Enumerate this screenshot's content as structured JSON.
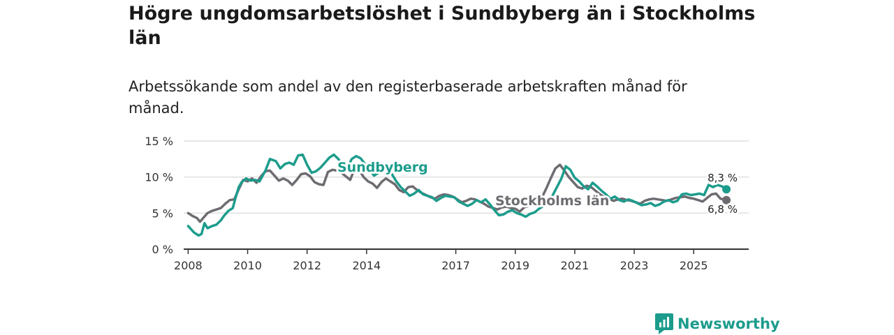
{
  "chart_data": {
    "type": "line",
    "title": "Högre ungdomsarbetslöshet i Sundbyberg än i Stockholms län",
    "subtitle": "Arbetssökande som andel av den registerbaserade arbetskraften månad för månad.",
    "xlabel": "",
    "ylabel": "",
    "xlim": [
      2007.85,
      2026.85
    ],
    "ylim": [
      0,
      15
    ],
    "x_ticks": [
      2008,
      2010,
      2012,
      2014,
      2017,
      2019,
      2021,
      2023,
      2025
    ],
    "x_tick_labels": [
      "2008",
      "2010",
      "2012",
      "2014",
      "2017",
      "2019",
      "2021",
      "2023",
      "2025"
    ],
    "y_ticks": [
      0,
      5,
      10,
      15
    ],
    "y_tick_labels": [
      "0 %",
      "5 %",
      "10 %",
      "15 %"
    ],
    "grid": true,
    "colors": {
      "Sundbyberg": "#1c9c8c",
      "Stockholms län": "#6e6b71",
      "grid": "#d6d6d6",
      "axis": "#333333"
    },
    "series": [
      {
        "name": "Sundbyberg",
        "label": "Sundbyberg",
        "end_label": "8,3 %",
        "x": [
          2008,
          2008.2,
          2008.35,
          2008.45,
          2008.55,
          2008.65,
          2008.8,
          2008.95,
          2009.1,
          2009.2,
          2009.35,
          2009.5,
          2009.6,
          2009.7,
          2009.8,
          2009.95,
          2010.1,
          2010.25,
          2010.4,
          2010.6,
          2010.75,
          2010.95,
          2011.1,
          2011.25,
          2011.4,
          2011.55,
          2011.7,
          2011.85,
          2012,
          2012.15,
          2012.3,
          2012.45,
          2012.6,
          2012.75,
          2012.9,
          2013.05,
          2013.2,
          2013.35,
          2013.5,
          2013.65,
          2013.8,
          2013.95,
          2014.1,
          2014.25,
          2014.4,
          2014.55,
          2014.7,
          2014.85,
          2015,
          2015.15,
          2015.3,
          2015.45,
          2015.6,
          2015.75,
          2015.9,
          2016.05,
          2016.2,
          2016.35,
          2016.5,
          2016.65,
          2016.8,
          2016.95,
          2017.1,
          2017.25,
          2017.4,
          2017.55,
          2017.7,
          2017.85,
          2018,
          2018.15,
          2018.3,
          2018.45,
          2018.6,
          2018.75,
          2018.9,
          2019.05,
          2019.2,
          2019.35,
          2019.5,
          2019.65,
          2019.8,
          2019.95,
          2020.1,
          2020.25,
          2020.4,
          2020.55,
          2020.7,
          2020.85,
          2021,
          2021.15,
          2021.3,
          2021.45,
          2021.6,
          2021.75,
          2021.9,
          2022.05,
          2022.2,
          2022.35,
          2022.5,
          2022.65,
          2022.8,
          2022.95,
          2023.1,
          2023.25,
          2023.4,
          2023.55,
          2023.7,
          2023.85,
          2024,
          2024.15,
          2024.3,
          2024.45,
          2024.6,
          2024.75,
          2024.9,
          2025.05,
          2025.2,
          2025.35,
          2025.5,
          2025.65,
          2025.8,
          2025.95,
          2026.1
        ],
        "values": [
          3.2,
          2.3,
          1.9,
          2.1,
          3.6,
          2.9,
          3.2,
          3.4,
          4.0,
          4.6,
          5.3,
          5.7,
          7.2,
          8.6,
          9.3,
          9.8,
          9.5,
          9.6,
          9.4,
          10.9,
          12.5,
          12.2,
          11.2,
          11.8,
          12.0,
          11.7,
          13.0,
          13.1,
          11.7,
          10.6,
          10.8,
          11.3,
          12.0,
          12.7,
          13.1,
          12.5,
          11.6,
          11.2,
          12.5,
          12.9,
          12.6,
          11.8,
          11.0,
          10.2,
          10.6,
          11.0,
          11.1,
          10.4,
          9.4,
          8.6,
          8.0,
          7.4,
          7.7,
          8.2,
          7.6,
          7.4,
          7.2,
          6.7,
          7.1,
          7.4,
          7.3,
          7.2,
          6.6,
          6.3,
          6.0,
          6.3,
          6.8,
          6.5,
          6.9,
          6.2,
          5.4,
          4.7,
          4.8,
          5.2,
          5.4,
          5.0,
          4.8,
          4.5,
          4.9,
          5.1,
          5.6,
          6.0,
          6.3,
          7.4,
          8.6,
          9.8,
          11.5,
          11.0,
          9.9,
          9.4,
          8.7,
          8.3,
          9.2,
          8.7,
          8.1,
          7.6,
          7.0,
          7.3,
          6.8,
          6.6,
          6.9,
          6.7,
          6.4,
          6.1,
          6.2,
          6.4,
          6.0,
          6.2,
          6.6,
          6.8,
          6.5,
          6.7,
          7.6,
          7.7,
          7.5,
          7.6,
          7.7,
          7.5,
          8.9,
          8.6,
          8.9,
          8.7,
          8.3
        ]
      },
      {
        "name": "Stockholms län",
        "label": "Stockholms län",
        "end_label": "6,8 %",
        "x": [
          2008,
          2008.15,
          2008.3,
          2008.4,
          2008.5,
          2008.65,
          2008.8,
          2008.95,
          2009.1,
          2009.25,
          2009.4,
          2009.55,
          2009.7,
          2009.85,
          2010,
          2010.15,
          2010.3,
          2010.45,
          2010.6,
          2010.75,
          2010.9,
          2011.05,
          2011.2,
          2011.35,
          2011.5,
          2011.65,
          2011.8,
          2011.95,
          2012.1,
          2012.25,
          2012.4,
          2012.55,
          2012.7,
          2012.85,
          2013,
          2013.15,
          2013.3,
          2013.45,
          2013.6,
          2013.75,
          2013.9,
          2014.05,
          2014.2,
          2014.35,
          2014.5,
          2014.65,
          2014.8,
          2014.95,
          2015.1,
          2015.25,
          2015.4,
          2015.55,
          2015.7,
          2015.85,
          2016,
          2016.15,
          2016.3,
          2016.45,
          2016.6,
          2016.75,
          2016.9,
          2017.05,
          2017.2,
          2017.35,
          2017.5,
          2017.65,
          2017.8,
          2017.95,
          2018.1,
          2018.25,
          2018.4,
          2018.55,
          2018.7,
          2018.85,
          2019,
          2019.15,
          2019.3,
          2019.45,
          2019.6,
          2019.75,
          2019.9,
          2020.05,
          2020.2,
          2020.35,
          2020.5,
          2020.65,
          2020.8,
          2020.95,
          2021.1,
          2021.25,
          2021.4,
          2021.55,
          2021.7,
          2021.85,
          2022,
          2022.15,
          2022.3,
          2022.45,
          2022.6,
          2022.75,
          2022.9,
          2023.05,
          2023.2,
          2023.35,
          2023.5,
          2023.65,
          2023.8,
          2023.95,
          2024.1,
          2024.25,
          2024.4,
          2024.55,
          2024.7,
          2024.85,
          2025,
          2025.15,
          2025.3,
          2025.45,
          2025.6,
          2025.75,
          2025.9,
          2026.1
        ],
        "values": [
          5.0,
          4.6,
          4.3,
          3.8,
          4.3,
          5.0,
          5.3,
          5.5,
          5.7,
          6.3,
          6.8,
          6.9,
          8.3,
          9.6,
          9.4,
          9.8,
          9.2,
          10.1,
          10.8,
          10.9,
          10.2,
          9.5,
          9.8,
          9.5,
          8.9,
          9.6,
          10.4,
          10.5,
          10.1,
          9.3,
          9.0,
          8.9,
          10.7,
          11.0,
          10.9,
          10.6,
          10.1,
          9.6,
          11.2,
          11.0,
          10.0,
          9.4,
          9.1,
          8.5,
          9.3,
          9.8,
          9.4,
          9.0,
          8.2,
          7.9,
          8.6,
          8.7,
          8.2,
          7.8,
          7.5,
          7.2,
          7.0,
          7.4,
          7.6,
          7.5,
          7.3,
          6.9,
          6.5,
          6.7,
          7.0,
          6.9,
          6.6,
          6.3,
          5.9,
          5.7,
          5.5,
          5.8,
          5.9,
          5.7,
          5.6,
          5.2,
          5.8,
          6.0,
          6.3,
          6.9,
          7.2,
          8.5,
          9.9,
          11.2,
          11.7,
          10.9,
          10.0,
          9.3,
          8.6,
          8.4,
          8.8,
          8.6,
          8.1,
          7.6,
          7.2,
          7.0,
          6.7,
          6.9,
          7.0,
          6.8,
          6.7,
          6.5,
          6.3,
          6.7,
          6.9,
          7.0,
          6.9,
          6.8,
          6.7,
          6.9,
          7.1,
          7.2,
          7.3,
          7.1,
          7.0,
          6.8,
          6.6,
          7.1,
          7.6,
          7.7,
          7.0,
          6.8
        ]
      }
    ]
  },
  "brand": {
    "name": "Newsworthy"
  }
}
